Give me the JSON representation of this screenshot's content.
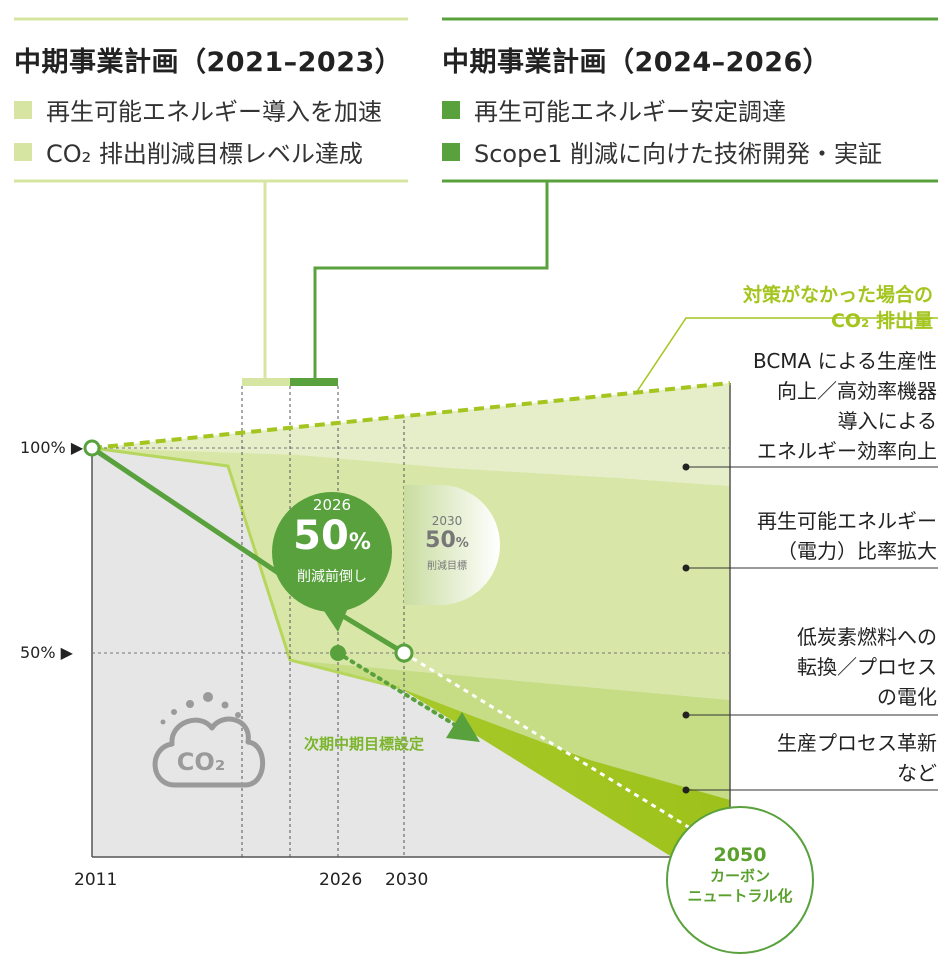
{
  "plan_2021": {
    "title": "中期事業計画（2021–2023）",
    "items": [
      "再生可能エネルギー導入を加速",
      "CO₂ 排出削減目標レベル達成"
    ]
  },
  "plan_2024": {
    "title": "中期事業計画（2024–2026）",
    "items": [
      "再生可能エネルギー安定調達",
      "Scope1 削減に向けた技術開発・実証"
    ]
  },
  "no_measure_label": [
    "対策がなかった場合の",
    "CO₂ 排出量"
  ],
  "measures": [
    [
      "BCMA による生産性",
      "向上／高効率機器",
      "導入による",
      "エネルギー効率向上"
    ],
    [
      "再生可能エネルギー",
      "（電力）比率拡大"
    ],
    [
      "低炭素燃料への",
      "転換／プロセス",
      "の電化"
    ],
    [
      "生産プロセス革新",
      "など"
    ]
  ],
  "axis": {
    "pct_100": "100% ▶",
    "pct_50": "50% ▶",
    "years": [
      "2011",
      "2026",
      "2030"
    ]
  },
  "bubble_2026": {
    "year": "2026",
    "value": "50",
    "unit": "%",
    "caption": "削減前倒し"
  },
  "bubble_2030": {
    "year": "2030",
    "value": "50",
    "unit": "%",
    "caption": "削減目標"
  },
  "next_goal": "次期中期目標設定",
  "goal_2050": {
    "year": "2050",
    "line1": "カーボン",
    "line2": "ニュートラル化"
  },
  "co2_icon_text": "CO₂",
  "colors": {
    "light_green": "#d6e6a2",
    "dark_green": "#58a13c",
    "lime": "#a3c51d",
    "gray_area": "#e6e6e6"
  }
}
